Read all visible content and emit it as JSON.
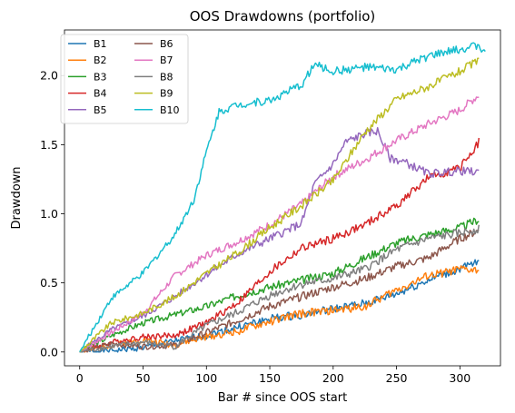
{
  "chart_data": {
    "type": "line",
    "title": "OOS Drawdowns (portfolio)",
    "xlabel": "Bar # since OOS start",
    "ylabel": "Drawdown",
    "xlim": [
      -12,
      332
    ],
    "ylim": [
      -0.1,
      2.33
    ],
    "xticks": [
      0,
      50,
      100,
      150,
      200,
      250,
      300
    ],
    "yticks": [
      0.0,
      0.5,
      1.0,
      1.5,
      2.0
    ],
    "xtick_labels": [
      "0",
      "50",
      "100",
      "150",
      "200",
      "250",
      "300"
    ],
    "ytick_labels": [
      "0.0",
      "0.5",
      "1.0",
      "1.5",
      "2.0"
    ],
    "grid": false,
    "legend_position": "upper-left",
    "legend_columns": 2,
    "series": [
      {
        "name": "B1",
        "color": "#1f77b4",
        "x": [
          0,
          25,
          50,
          75,
          100,
          125,
          150,
          175,
          200,
          225,
          250,
          275,
          300,
          315
        ],
        "y": [
          0.0,
          0.01,
          0.03,
          0.08,
          0.12,
          0.18,
          0.24,
          0.27,
          0.31,
          0.35,
          0.42,
          0.52,
          0.6,
          0.65
        ]
      },
      {
        "name": "B2",
        "color": "#ff7f0e",
        "x": [
          0,
          25,
          50,
          75,
          100,
          125,
          150,
          175,
          200,
          225,
          250,
          275,
          300,
          315
        ],
        "y": [
          0.0,
          0.05,
          0.09,
          0.05,
          0.11,
          0.15,
          0.22,
          0.28,
          0.3,
          0.33,
          0.45,
          0.55,
          0.6,
          0.59
        ]
      },
      {
        "name": "B3",
        "color": "#2ca02c",
        "x": [
          0,
          25,
          50,
          75,
          100,
          125,
          150,
          175,
          200,
          225,
          250,
          275,
          300,
          315
        ],
        "y": [
          0.0,
          0.12,
          0.21,
          0.27,
          0.33,
          0.41,
          0.47,
          0.52,
          0.57,
          0.68,
          0.79,
          0.85,
          0.9,
          0.96
        ]
      },
      {
        "name": "B4",
        "color": "#d62728",
        "x": [
          0,
          25,
          50,
          75,
          100,
          125,
          150,
          175,
          200,
          225,
          250,
          275,
          300,
          315
        ],
        "y": [
          0.0,
          0.07,
          0.11,
          0.12,
          0.21,
          0.36,
          0.58,
          0.75,
          0.82,
          0.92,
          1.06,
          1.26,
          1.33,
          1.52
        ]
      },
      {
        "name": "B5",
        "color": "#9467bd",
        "x": [
          0,
          25,
          50,
          75,
          100,
          125,
          150,
          175,
          185,
          200,
          210,
          225,
          235,
          245,
          255,
          275,
          300,
          315
        ],
        "y": [
          0.0,
          0.16,
          0.26,
          0.4,
          0.56,
          0.71,
          0.82,
          0.93,
          1.21,
          1.36,
          1.52,
          1.58,
          1.6,
          1.4,
          1.38,
          1.29,
          1.31,
          1.3
        ]
      },
      {
        "name": "B6",
        "color": "#8c564b",
        "x": [
          0,
          25,
          50,
          75,
          100,
          125,
          150,
          175,
          200,
          225,
          250,
          275,
          300,
          315
        ],
        "y": [
          0.0,
          0.06,
          0.04,
          0.05,
          0.14,
          0.23,
          0.33,
          0.4,
          0.47,
          0.53,
          0.62,
          0.68,
          0.82,
          0.88
        ]
      },
      {
        "name": "B7",
        "color": "#e377c2",
        "x": [
          0,
          25,
          50,
          75,
          100,
          125,
          150,
          175,
          200,
          225,
          250,
          275,
          300,
          315
        ],
        "y": [
          0.0,
          0.14,
          0.28,
          0.55,
          0.7,
          0.8,
          0.92,
          1.07,
          1.27,
          1.39,
          1.53,
          1.65,
          1.75,
          1.86
        ]
      },
      {
        "name": "B8",
        "color": "#7f7f7f",
        "x": [
          0,
          25,
          50,
          75,
          100,
          125,
          150,
          175,
          200,
          225,
          250,
          275,
          300,
          315
        ],
        "y": [
          0.0,
          0.04,
          0.07,
          0.04,
          0.19,
          0.29,
          0.41,
          0.49,
          0.53,
          0.6,
          0.74,
          0.82,
          0.86,
          0.89
        ]
      },
      {
        "name": "B9",
        "color": "#bcbd22",
        "x": [
          0,
          25,
          50,
          75,
          100,
          125,
          150,
          175,
          200,
          225,
          250,
          275,
          300,
          315
        ],
        "y": [
          0.0,
          0.21,
          0.28,
          0.4,
          0.57,
          0.72,
          0.9,
          1.06,
          1.24,
          1.59,
          1.83,
          1.92,
          2.03,
          2.11
        ]
      },
      {
        "name": "B10",
        "color": "#17becf",
        "x": [
          0,
          25,
          50,
          75,
          90,
          100,
          110,
          125,
          150,
          175,
          185,
          200,
          225,
          250,
          275,
          300,
          315,
          320
        ],
        "y": [
          0.0,
          0.39,
          0.57,
          0.85,
          1.1,
          1.45,
          1.74,
          1.79,
          1.82,
          1.93,
          2.08,
          2.03,
          2.06,
          2.04,
          2.14,
          2.19,
          2.22,
          2.15
        ]
      }
    ]
  }
}
